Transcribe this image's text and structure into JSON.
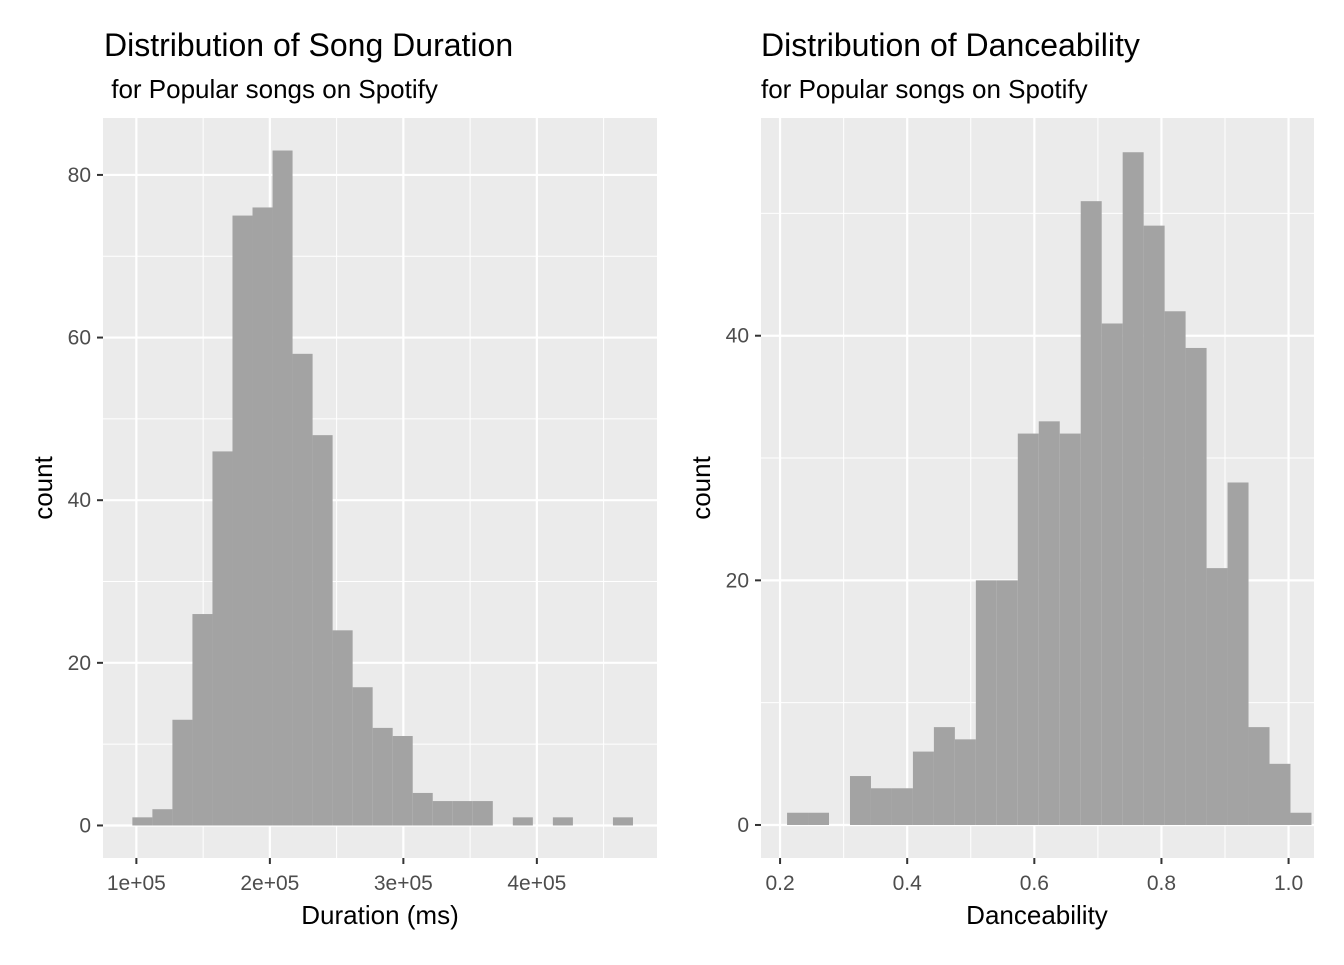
{
  "panels": [
    {
      "title": "Distribution of Song Duration",
      "subtitle": " for Popular songs on Spotify",
      "chart_data": {
        "type": "bar",
        "subtype": "histogram",
        "title": "Distribution of Song Duration",
        "subtitle": " for Popular songs on Spotify",
        "xlabel": "Duration (ms)",
        "ylabel": "count",
        "xlim": [
          75000,
          490000
        ],
        "ylim": [
          -4,
          87
        ],
        "x_ticks": [
          100000,
          200000,
          300000,
          400000
        ],
        "x_tick_labels": [
          "1e+05",
          "2e+05",
          "3e+05",
          "4e+05"
        ],
        "y_ticks": [
          0,
          20,
          40,
          60,
          80
        ],
        "y_tick_labels": [
          "0",
          "20",
          "40",
          "60",
          "80"
        ],
        "bin_width": 15000,
        "bins": [
          {
            "x0": 97000,
            "x1": 112000,
            "count": 1
          },
          {
            "x0": 112000,
            "x1": 127000,
            "count": 2
          },
          {
            "x0": 127000,
            "x1": 142000,
            "count": 13
          },
          {
            "x0": 142000,
            "x1": 157000,
            "count": 26
          },
          {
            "x0": 157000,
            "x1": 172000,
            "count": 46
          },
          {
            "x0": 172000,
            "x1": 187000,
            "count": 75
          },
          {
            "x0": 187000,
            "x1": 202000,
            "count": 76
          },
          {
            "x0": 202000,
            "x1": 217000,
            "count": 83
          },
          {
            "x0": 217000,
            "x1": 232000,
            "count": 58
          },
          {
            "x0": 232000,
            "x1": 247000,
            "count": 48
          },
          {
            "x0": 247000,
            "x1": 262000,
            "count": 24
          },
          {
            "x0": 262000,
            "x1": 277000,
            "count": 17
          },
          {
            "x0": 277000,
            "x1": 292000,
            "count": 12
          },
          {
            "x0": 292000,
            "x1": 307000,
            "count": 11
          },
          {
            "x0": 307000,
            "x1": 322000,
            "count": 4
          },
          {
            "x0": 322000,
            "x1": 337000,
            "count": 3
          },
          {
            "x0": 337000,
            "x1": 352000,
            "count": 3
          },
          {
            "x0": 352000,
            "x1": 367000,
            "count": 3
          },
          {
            "x0": 367000,
            "x1": 382000,
            "count": 0
          },
          {
            "x0": 382000,
            "x1": 397000,
            "count": 1
          },
          {
            "x0": 397000,
            "x1": 412000,
            "count": 0
          },
          {
            "x0": 412000,
            "x1": 427000,
            "count": 1
          },
          {
            "x0": 427000,
            "x1": 442000,
            "count": 0
          },
          {
            "x0": 442000,
            "x1": 457000,
            "count": 0
          },
          {
            "x0": 457000,
            "x1": 472000,
            "count": 1
          }
        ],
        "grid": true,
        "fill_color": "#a3a3a3",
        "panel_background": "#ebebeb"
      }
    },
    {
      "title": "Distribution of Danceability",
      "subtitle": "for Popular songs on Spotify",
      "chart_data": {
        "type": "bar",
        "subtype": "histogram",
        "title": "Distribution of Danceability",
        "subtitle": "for Popular songs on Spotify",
        "xlabel": "Danceability",
        "ylabel": "count",
        "xlim": [
          0.17,
          1.04
        ],
        "ylim": [
          -2.7,
          57.8
        ],
        "x_ticks": [
          0.2,
          0.4,
          0.6,
          0.8,
          1.0
        ],
        "x_tick_labels": [
          "0.2",
          "0.4",
          "0.6",
          "0.8",
          "1.0"
        ],
        "y_ticks": [
          0,
          20,
          40
        ],
        "y_tick_labels": [
          "0",
          "20",
          "40"
        ],
        "bin_width": 0.033,
        "bins": [
          {
            "x0": 0.211,
            "x1": 0.244,
            "count": 1
          },
          {
            "x0": 0.244,
            "x1": 0.277,
            "count": 1
          },
          {
            "x0": 0.277,
            "x1": 0.31,
            "count": 0
          },
          {
            "x0": 0.31,
            "x1": 0.343,
            "count": 4
          },
          {
            "x0": 0.343,
            "x1": 0.376,
            "count": 3
          },
          {
            "x0": 0.376,
            "x1": 0.409,
            "count": 3
          },
          {
            "x0": 0.409,
            "x1": 0.442,
            "count": 6
          },
          {
            "x0": 0.442,
            "x1": 0.475,
            "count": 8
          },
          {
            "x0": 0.475,
            "x1": 0.508,
            "count": 7
          },
          {
            "x0": 0.508,
            "x1": 0.541,
            "count": 20
          },
          {
            "x0": 0.541,
            "x1": 0.574,
            "count": 20
          },
          {
            "x0": 0.574,
            "x1": 0.607,
            "count": 32
          },
          {
            "x0": 0.607,
            "x1": 0.64,
            "count": 33
          },
          {
            "x0": 0.64,
            "x1": 0.673,
            "count": 32
          },
          {
            "x0": 0.673,
            "x1": 0.706,
            "count": 51
          },
          {
            "x0": 0.706,
            "x1": 0.739,
            "count": 41
          },
          {
            "x0": 0.739,
            "x1": 0.772,
            "count": 55
          },
          {
            "x0": 0.772,
            "x1": 0.805,
            "count": 49
          },
          {
            "x0": 0.805,
            "x1": 0.838,
            "count": 42
          },
          {
            "x0": 0.838,
            "x1": 0.871,
            "count": 39
          },
          {
            "x0": 0.871,
            "x1": 0.904,
            "count": 21
          },
          {
            "x0": 0.904,
            "x1": 0.937,
            "count": 28
          },
          {
            "x0": 0.937,
            "x1": 0.97,
            "count": 8
          },
          {
            "x0": 0.97,
            "x1": 1.003,
            "count": 5
          },
          {
            "x0": 1.003,
            "x1": 1.036,
            "count": 1
          }
        ],
        "grid": true,
        "fill_color": "#a3a3a3",
        "panel_background": "#ebebeb"
      }
    }
  ]
}
